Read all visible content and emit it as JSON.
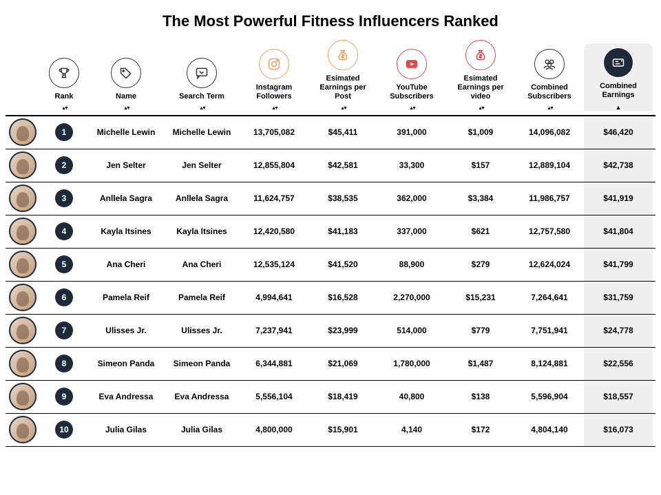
{
  "title": "The Most Powerful Fitness Influencers Ranked",
  "colors": {
    "dark_navy": "#1e2a3a",
    "instagram": "#f5a05a",
    "money": "#f5a05a",
    "youtube": "#e04a4a",
    "video_money": "#e04a4a",
    "gray_stroke": "#333333",
    "highlight_bg": "#f0f0f0"
  },
  "columns": [
    {
      "key": "avatar",
      "label": ""
    },
    {
      "key": "rank",
      "label": "Rank",
      "icon": "trophy",
      "stroke": "#333333"
    },
    {
      "key": "name",
      "label": "Name",
      "icon": "tag",
      "stroke": "#333333"
    },
    {
      "key": "search_term",
      "label": "Search Term",
      "icon": "comment",
      "stroke": "#333333"
    },
    {
      "key": "instagram_followers",
      "label": "Instagram Followers",
      "icon": "instagram",
      "stroke": "#f5a05a"
    },
    {
      "key": "earnings_per_post",
      "label": "Esimated Earnings per Post",
      "icon": "money-bag",
      "stroke": "#f5a05a"
    },
    {
      "key": "youtube_subscribers",
      "label": "YouTube Subscribers",
      "icon": "youtube",
      "stroke": "#e04a4a"
    },
    {
      "key": "earnings_per_video",
      "label": "Esimated Earnings per video",
      "icon": "money-bag",
      "stroke": "#e04a4a"
    },
    {
      "key": "combined_subscribers",
      "label": "Combined Subscribers",
      "icon": "people",
      "stroke": "#333333"
    },
    {
      "key": "combined_earnings",
      "label": "Combined Earnings",
      "icon": "receipt",
      "stroke": "#ffffff",
      "highlighted": true
    }
  ],
  "rows": [
    {
      "rank": "1",
      "name": "Michelle Lewin",
      "search_term": "Michelle Lewin",
      "instagram_followers": "13,705,082",
      "earnings_per_post": "$45,411",
      "youtube_subscribers": "391,000",
      "earnings_per_video": "$1,009",
      "combined_subscribers": "14,096,082",
      "combined_earnings": "$46,420"
    },
    {
      "rank": "2",
      "name": "Jen Selter",
      "search_term": "Jen Selter",
      "instagram_followers": "12,855,804",
      "earnings_per_post": "$42,581",
      "youtube_subscribers": "33,300",
      "earnings_per_video": "$157",
      "combined_subscribers": "12,889,104",
      "combined_earnings": "$42,738"
    },
    {
      "rank": "3",
      "name": "Anllela Sagra",
      "search_term": "Anllela Sagra",
      "instagram_followers": "11,624,757",
      "earnings_per_post": "$38,535",
      "youtube_subscribers": "362,000",
      "earnings_per_video": "$3,384",
      "combined_subscribers": "11,986,757",
      "combined_earnings": "$41,919"
    },
    {
      "rank": "4",
      "name": "Kayla Itsines",
      "search_term": "Kayla Itsines",
      "instagram_followers": "12,420,580",
      "earnings_per_post": "$41,183",
      "youtube_subscribers": "337,000",
      "earnings_per_video": "$621",
      "combined_subscribers": "12,757,580",
      "combined_earnings": "$41,804"
    },
    {
      "rank": "5",
      "name": "Ana Cheri",
      "search_term": "Ana Cheri",
      "instagram_followers": "12,535,124",
      "earnings_per_post": "$41,520",
      "youtube_subscribers": "88,900",
      "earnings_per_video": "$279",
      "combined_subscribers": "12,624,024",
      "combined_earnings": "$41,799"
    },
    {
      "rank": "6",
      "name": "Pamela Reif",
      "search_term": "Pamela Reif",
      "instagram_followers": "4,994,641",
      "earnings_per_post": "$16,528",
      "youtube_subscribers": "2,270,000",
      "earnings_per_video": "$15,231",
      "combined_subscribers": "7,264,641",
      "combined_earnings": "$31,759"
    },
    {
      "rank": "7",
      "name": "Ulisses Jr.",
      "search_term": "Ulisses Jr.",
      "instagram_followers": "7,237,941",
      "earnings_per_post": "$23,999",
      "youtube_subscribers": "514,000",
      "earnings_per_video": "$779",
      "combined_subscribers": "7,751,941",
      "combined_earnings": "$24,778"
    },
    {
      "rank": "8",
      "name": "Simeon Panda",
      "search_term": "Simeon Panda",
      "instagram_followers": "6,344,881",
      "earnings_per_post": "$21,069",
      "youtube_subscribers": "1,780,000",
      "earnings_per_video": "$1,487",
      "combined_subscribers": "8,124,881",
      "combined_earnings": "$22,556"
    },
    {
      "rank": "9",
      "name": "Eva Andressa",
      "search_term": "Eva Andressa",
      "instagram_followers": "5,556,104",
      "earnings_per_post": "$18,419",
      "youtube_subscribers": "40,800",
      "earnings_per_video": "$138",
      "combined_subscribers": "5,596,904",
      "combined_earnings": "$18,557"
    },
    {
      "rank": "10",
      "name": "Julia Gilas",
      "search_term": "Julia Gilas",
      "instagram_followers": "4,800,000",
      "earnings_per_post": "$15,901",
      "youtube_subscribers": "4,140",
      "earnings_per_video": "$172",
      "combined_subscribers": "4,804,140",
      "combined_earnings": "$16,073"
    }
  ]
}
